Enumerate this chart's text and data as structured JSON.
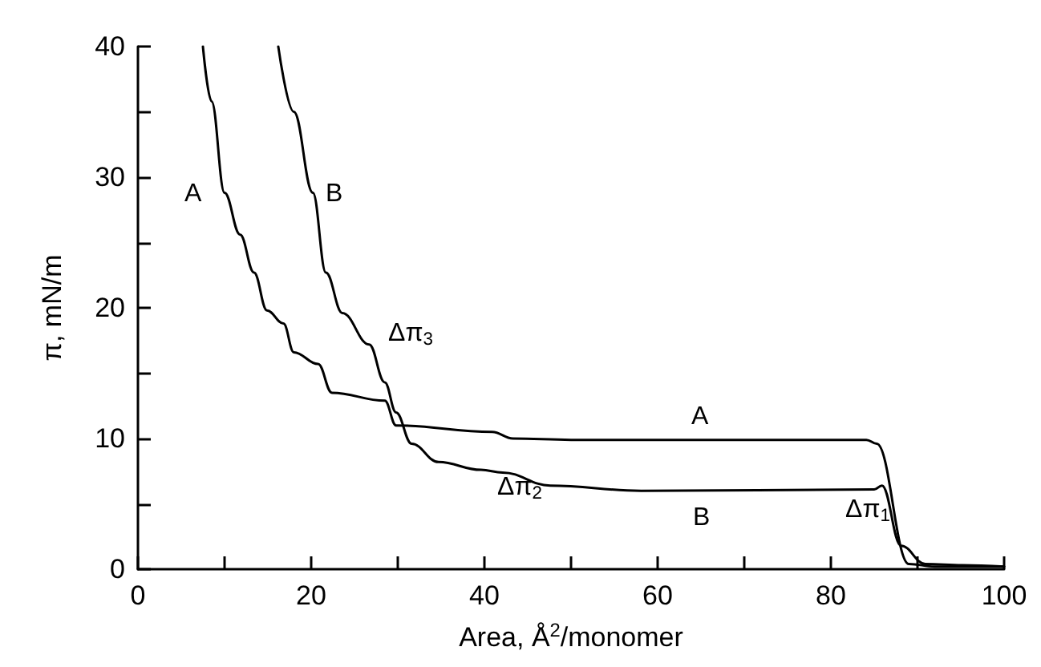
{
  "chart_data": {
    "type": "line",
    "xlabel": "Area, Å$^{2}$/monomer",
    "ylabel": "π, mN/m",
    "xlim": [
      0,
      100
    ],
    "ylim": [
      0,
      40
    ],
    "xticks": [
      0,
      {
        "value": 10,
        "label": null
      },
      20,
      {
        "value": 30,
        "label": null
      },
      40,
      {
        "value": 50,
        "label": null
      },
      60,
      {
        "value": 70,
        "label": null
      },
      80,
      {
        "value": 90,
        "label": null
      },
      100
    ],
    "yticks": [
      0,
      {
        "value": 5,
        "label": null
      },
      10,
      {
        "value": 15,
        "label": null
      },
      20,
      {
        "value": 25,
        "label": null
      },
      30,
      {
        "value": 35,
        "label": null
      },
      40
    ],
    "grid": false,
    "marker": "none",
    "line_style": "solid",
    "series": [
      {
        "color": "#000000",
        "x": [
          7.5,
          8.5,
          10,
          11.8,
          13.4,
          14.9,
          16.8,
          18.0,
          20.8,
          22.4,
          28.5,
          29.8,
          40.9,
          43.3,
          50,
          84.1,
          85.3,
          89.0,
          92,
          100
        ],
        "values": [
          40,
          35.8,
          28.8,
          25.6,
          22.7,
          19.8,
          18.8,
          16.6,
          15.7,
          13.5,
          12.9,
          11.0,
          10.5,
          10.0,
          9.9,
          9.9,
          9.6,
          0.4,
          0.2,
          0.2
        ]
      },
      {
        "color": "#000000",
        "x": [
          16.2,
          18.0,
          20.2,
          21.7,
          23.6,
          26.7,
          28.5,
          29.8,
          31.6,
          34.7,
          39.6,
          42.1,
          47.6,
          58.1,
          85.0,
          85.9,
          88.1,
          90.9,
          95.2,
          100
        ],
        "values": [
          40,
          35.0,
          28.8,
          22.7,
          19.6,
          17.2,
          14.3,
          12.0,
          9.6,
          8.2,
          7.6,
          7.4,
          6.4,
          6.0,
          6.1,
          6.4,
          1.8,
          0.4,
          0.3,
          0.2
        ]
      }
    ],
    "annotations": [
      "A",
      "B",
      "Δπ$_{3}$",
      "A",
      "Δπ$_{2}$",
      "B",
      "Δπ$_{1}$"
    ]
  }
}
